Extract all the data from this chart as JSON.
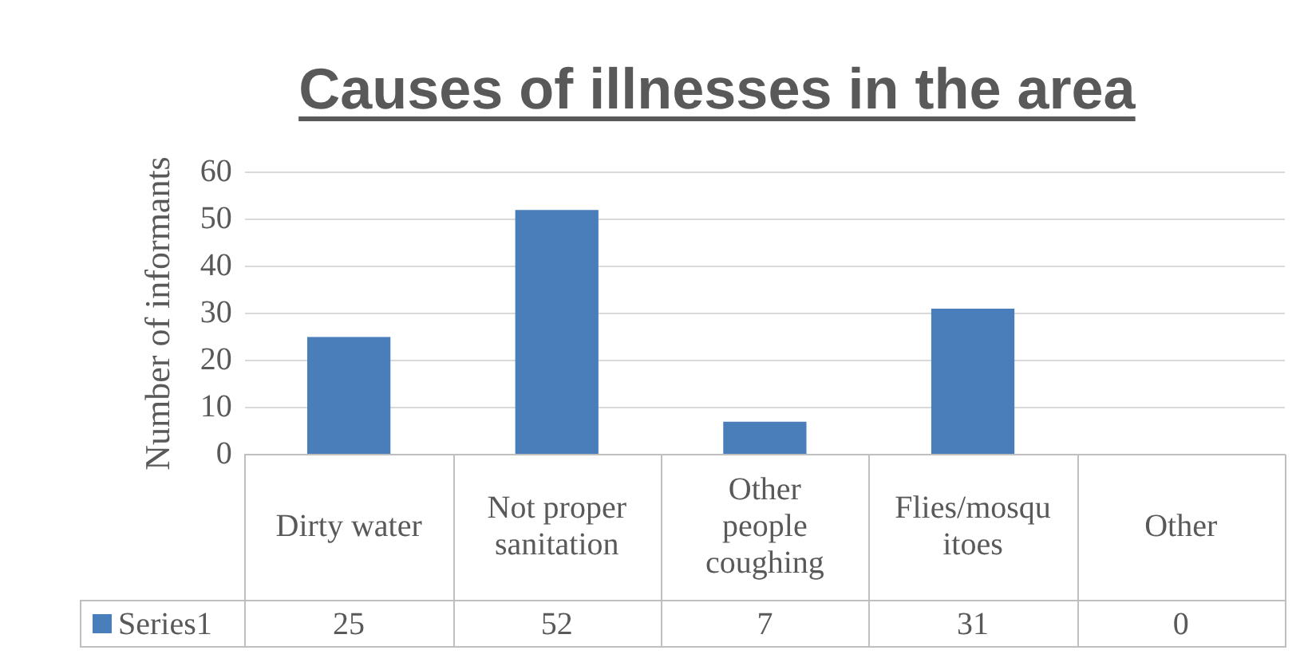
{
  "chart_data": {
    "type": "bar",
    "title": "Causes of illnesses in the area",
    "ylabel": "Number of informants",
    "categories": [
      "Dirty water",
      "Not proper sanitation",
      "Other people coughing",
      "Flies/mosquitoes",
      "Other"
    ],
    "series": [
      {
        "name": "Series1",
        "color": "#4a7ebb",
        "values": [
          25,
          52,
          7,
          31,
          0
        ]
      }
    ],
    "ylim": [
      0,
      60
    ],
    "yticks": [
      0,
      10,
      20,
      30,
      40,
      50,
      60
    ],
    "grid": "y",
    "data_labels": true,
    "legend": "bottom"
  }
}
